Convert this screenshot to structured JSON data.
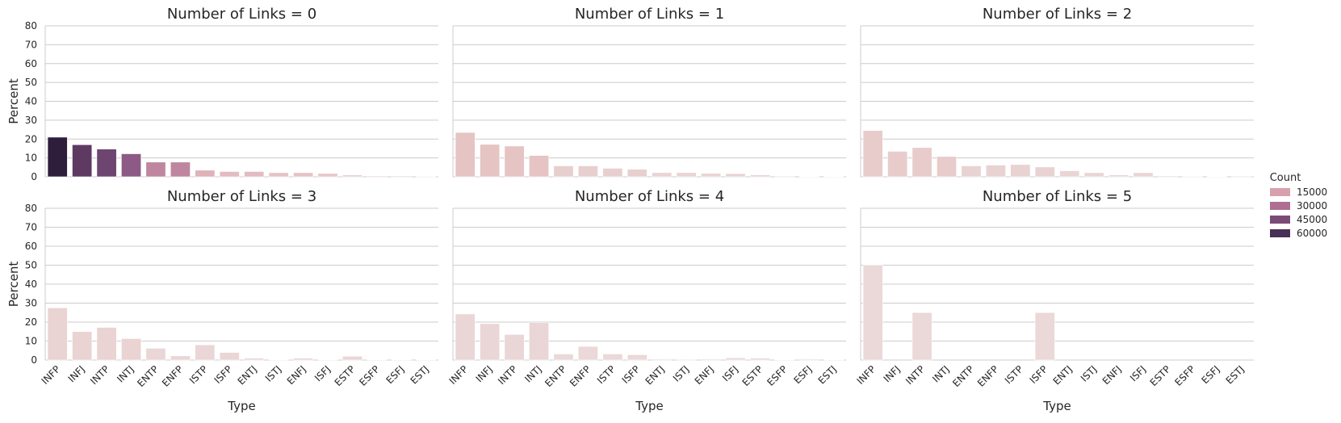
{
  "legend": {
    "title": "Count",
    "entries": [
      {
        "label": "15000",
        "color": "#d8a0ae"
      },
      {
        "label": "30000",
        "color": "#ae6f93"
      },
      {
        "label": "45000",
        "color": "#7b4b78"
      },
      {
        "label": "60000",
        "color": "#472f56"
      }
    ]
  },
  "chart_data": {
    "type": "bar",
    "facet": "Number of Links",
    "grid": true,
    "xlabel": "Type",
    "ylabel": "Percent",
    "ylim": [
      0,
      80
    ],
    "yticks": [
      0,
      10,
      20,
      30,
      40,
      50,
      60,
      70,
      80
    ],
    "categories": [
      "INFP",
      "INFJ",
      "INTP",
      "INTJ",
      "ENTP",
      "ENFP",
      "ISTP",
      "ISFP",
      "ENTJ",
      "ISTJ",
      "ENFJ",
      "ISFJ",
      "ESTP",
      "ESFP",
      "ESFJ",
      "ESTJ"
    ],
    "panels": [
      {
        "title": "Number of Links = 0",
        "values": [
          21,
          17,
          14.7,
          12.2,
          7.8,
          7.8,
          3.5,
          2.8,
          2.8,
          2.2,
          2.2,
          1.8,
          1.0,
          0.5,
          0.5,
          0.3
        ],
        "colors": [
          "#2e1e3b",
          "#5e3a63",
          "#6e4570",
          "#8c5a84",
          "#bf879f",
          "#bf879f",
          "#deb2b8",
          "#e2bcc0",
          "#e2bcc0",
          "#e5c4c6",
          "#e5c4c6",
          "#e7c8c9",
          "#ead0d0",
          "#ead2d2",
          "#ead2d2",
          "#ebd4d4"
        ]
      },
      {
        "title": "Number of Links = 1",
        "values": [
          23.5,
          17.2,
          16.3,
          11.3,
          5.8,
          5.8,
          4.5,
          4.0,
          2.2,
          2.2,
          1.8,
          1.7,
          1.0,
          0.4,
          0.2,
          0.2
        ],
        "colors": [
          "#e6c4c4",
          "#e6c4c4",
          "#e6c4c4",
          "#e6c4c4",
          "#e8cfcf",
          "#e8cfcf",
          "#e8cfcf",
          "#e8cfcf",
          "#e9d3d3",
          "#e9d3d3",
          "#e9d3d3",
          "#e9d3d3",
          "#e9d3d3",
          "#e9d3d3",
          "#e9d3d3",
          "#e9d3d3"
        ]
      },
      {
        "title": "Number of Links = 2",
        "values": [
          24.5,
          13.5,
          15.5,
          10.8,
          5.8,
          6.2,
          6.5,
          5.2,
          3.2,
          2.2,
          1.0,
          2.2,
          0.5,
          0.3,
          0.2,
          0.4
        ],
        "colors": [
          "#e8cccc",
          "#e8cccc",
          "#e8cccc",
          "#e8cccc",
          "#e9d2d2",
          "#e9d2d2",
          "#e9d2d2",
          "#e9d2d2",
          "#ead5d5",
          "#ead5d5",
          "#ead5d5",
          "#ead5d5",
          "#ead5d5",
          "#ead5d5",
          "#ead5d5",
          "#ead5d5"
        ]
      },
      {
        "title": "Number of Links = 3",
        "values": [
          27.5,
          15,
          17.2,
          11.3,
          6.2,
          2.2,
          8.0,
          4.0,
          1.0,
          0.2,
          1.0,
          0.2,
          2.0,
          0.1,
          0.1,
          0.1
        ],
        "colors": [
          "#e9d3d3",
          "#e9d3d3",
          "#e9d3d3",
          "#e9d3d3",
          "#ead6d6",
          "#ead6d6",
          "#ead6d6",
          "#ead6d6",
          "#ead6d6",
          "#ead6d6",
          "#ead6d6",
          "#ead6d6",
          "#ead6d6",
          "#ead6d6",
          "#ead6d6",
          "#ead6d6"
        ]
      },
      {
        "title": "Number of Links = 4",
        "values": [
          24.3,
          19.2,
          13.5,
          19.8,
          3.2,
          7.2,
          3.2,
          2.8,
          0.5,
          0.4,
          0.5,
          1.2,
          1.0,
          0.1,
          0.5,
          0.1
        ],
        "colors": [
          "#ead6d6",
          "#ead6d6",
          "#ead6d6",
          "#ead6d6",
          "#ebd8d8",
          "#ebd8d8",
          "#ebd8d8",
          "#ebd8d8",
          "#ebd8d8",
          "#ebd8d8",
          "#ebd8d8",
          "#ebd8d8",
          "#ebd8d8",
          "#ebd8d8",
          "#ebd8d8",
          "#ebd8d8"
        ]
      },
      {
        "title": "Number of Links = 5",
        "values": [
          50,
          0,
          25,
          0,
          0,
          0,
          0,
          25,
          0,
          0,
          0,
          0,
          0,
          0,
          0,
          0
        ],
        "colors": [
          "#ebd8d8",
          "#ebd8d8",
          "#ebd8d8",
          "#ebd8d8",
          "#ebd8d8",
          "#ebd8d8",
          "#ebd8d8",
          "#ebd8d8",
          "#ebd8d8",
          "#ebd8d8",
          "#ebd8d8",
          "#ebd8d8",
          "#ebd8d8",
          "#ebd8d8",
          "#ebd8d8",
          "#ebd8d8"
        ]
      }
    ]
  }
}
